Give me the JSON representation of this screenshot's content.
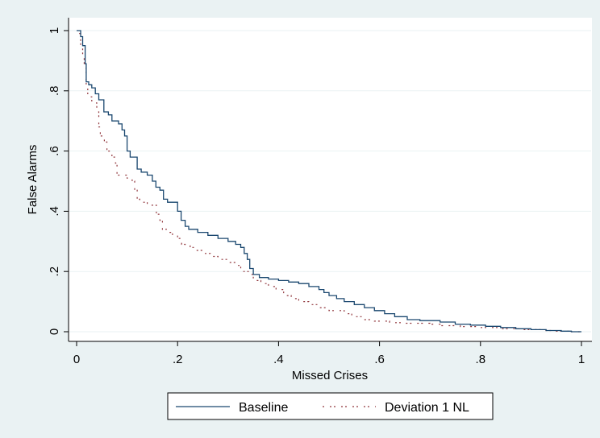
{
  "colors": {
    "background": "#eaf2f3",
    "plot_background": "#ffffff",
    "grid": "#eaf2f3",
    "baseline": "#1a476f",
    "deviation": "#90353b"
  },
  "chart_data": {
    "type": "line",
    "title": "",
    "xlabel": "Missed Crises",
    "ylabel": "False Alarms",
    "xlim": [
      0,
      1
    ],
    "ylim": [
      0,
      1
    ],
    "x_ticks": [
      0,
      0.2,
      0.4,
      0.6,
      0.8,
      1
    ],
    "x_tick_labels": [
      "0",
      ".2",
      ".4",
      ".6",
      ".8",
      "1"
    ],
    "y_ticks": [
      0,
      0.2,
      0.4,
      0.6,
      0.8,
      1
    ],
    "y_tick_labels": [
      "0",
      ".2",
      ".4",
      ".6",
      ".8",
      "1"
    ],
    "grid": true,
    "legend_position": "bottom",
    "series": [
      {
        "name": "Baseline",
        "style": "solid step",
        "points": [
          [
            0,
            1.0
          ],
          [
            0.008,
            1.0
          ],
          [
            0.008,
            0.98
          ],
          [
            0.012,
            0.98
          ],
          [
            0.012,
            0.95
          ],
          [
            0.017,
            0.95
          ],
          [
            0.017,
            0.89
          ],
          [
            0.019,
            0.89
          ],
          [
            0.019,
            0.83
          ],
          [
            0.024,
            0.83
          ],
          [
            0.024,
            0.82
          ],
          [
            0.03,
            0.82
          ],
          [
            0.03,
            0.81
          ],
          [
            0.037,
            0.81
          ],
          [
            0.037,
            0.79
          ],
          [
            0.044,
            0.79
          ],
          [
            0.044,
            0.77
          ],
          [
            0.054,
            0.77
          ],
          [
            0.054,
            0.73
          ],
          [
            0.063,
            0.73
          ],
          [
            0.063,
            0.72
          ],
          [
            0.07,
            0.72
          ],
          [
            0.07,
            0.7
          ],
          [
            0.083,
            0.7
          ],
          [
            0.083,
            0.69
          ],
          [
            0.09,
            0.69
          ],
          [
            0.09,
            0.67
          ],
          [
            0.095,
            0.67
          ],
          [
            0.095,
            0.65
          ],
          [
            0.1,
            0.65
          ],
          [
            0.1,
            0.6
          ],
          [
            0.106,
            0.6
          ],
          [
            0.106,
            0.58
          ],
          [
            0.12,
            0.58
          ],
          [
            0.12,
            0.54
          ],
          [
            0.128,
            0.54
          ],
          [
            0.128,
            0.53
          ],
          [
            0.14,
            0.53
          ],
          [
            0.14,
            0.52
          ],
          [
            0.15,
            0.52
          ],
          [
            0.15,
            0.5
          ],
          [
            0.157,
            0.5
          ],
          [
            0.157,
            0.48
          ],
          [
            0.165,
            0.48
          ],
          [
            0.165,
            0.47
          ],
          [
            0.172,
            0.47
          ],
          [
            0.172,
            0.44
          ],
          [
            0.18,
            0.44
          ],
          [
            0.18,
            0.43
          ],
          [
            0.2,
            0.43
          ],
          [
            0.2,
            0.4
          ],
          [
            0.207,
            0.4
          ],
          [
            0.207,
            0.37
          ],
          [
            0.215,
            0.37
          ],
          [
            0.215,
            0.35
          ],
          [
            0.222,
            0.35
          ],
          [
            0.222,
            0.34
          ],
          [
            0.24,
            0.34
          ],
          [
            0.24,
            0.33
          ],
          [
            0.26,
            0.33
          ],
          [
            0.26,
            0.32
          ],
          [
            0.28,
            0.32
          ],
          [
            0.28,
            0.31
          ],
          [
            0.3,
            0.31
          ],
          [
            0.3,
            0.3
          ],
          [
            0.315,
            0.3
          ],
          [
            0.315,
            0.29
          ],
          [
            0.325,
            0.29
          ],
          [
            0.325,
            0.28
          ],
          [
            0.332,
            0.28
          ],
          [
            0.332,
            0.26
          ],
          [
            0.338,
            0.26
          ],
          [
            0.338,
            0.24
          ],
          [
            0.343,
            0.24
          ],
          [
            0.343,
            0.21
          ],
          [
            0.35,
            0.21
          ],
          [
            0.35,
            0.19
          ],
          [
            0.362,
            0.19
          ],
          [
            0.362,
            0.18
          ],
          [
            0.38,
            0.18
          ],
          [
            0.38,
            0.175
          ],
          [
            0.4,
            0.175
          ],
          [
            0.4,
            0.17
          ],
          [
            0.42,
            0.17
          ],
          [
            0.42,
            0.165
          ],
          [
            0.44,
            0.165
          ],
          [
            0.44,
            0.16
          ],
          [
            0.46,
            0.16
          ],
          [
            0.46,
            0.15
          ],
          [
            0.48,
            0.15
          ],
          [
            0.48,
            0.14
          ],
          [
            0.49,
            0.14
          ],
          [
            0.49,
            0.13
          ],
          [
            0.5,
            0.13
          ],
          [
            0.5,
            0.12
          ],
          [
            0.515,
            0.12
          ],
          [
            0.515,
            0.11
          ],
          [
            0.53,
            0.11
          ],
          [
            0.53,
            0.1
          ],
          [
            0.55,
            0.1
          ],
          [
            0.55,
            0.09
          ],
          [
            0.57,
            0.09
          ],
          [
            0.57,
            0.08
          ],
          [
            0.59,
            0.08
          ],
          [
            0.59,
            0.07
          ],
          [
            0.61,
            0.07
          ],
          [
            0.61,
            0.06
          ],
          [
            0.63,
            0.06
          ],
          [
            0.63,
            0.05
          ],
          [
            0.655,
            0.05
          ],
          [
            0.655,
            0.04
          ],
          [
            0.68,
            0.04
          ],
          [
            0.68,
            0.037
          ],
          [
            0.72,
            0.037
          ],
          [
            0.72,
            0.032
          ],
          [
            0.75,
            0.032
          ],
          [
            0.75,
            0.025
          ],
          [
            0.78,
            0.025
          ],
          [
            0.78,
            0.022
          ],
          [
            0.81,
            0.022
          ],
          [
            0.81,
            0.018
          ],
          [
            0.84,
            0.018
          ],
          [
            0.84,
            0.014
          ],
          [
            0.87,
            0.014
          ],
          [
            0.87,
            0.01
          ],
          [
            0.9,
            0.01
          ],
          [
            0.9,
            0.007
          ],
          [
            0.93,
            0.007
          ],
          [
            0.93,
            0.004
          ],
          [
            0.96,
            0.004
          ],
          [
            0.96,
            0.002
          ],
          [
            0.98,
            0.002
          ],
          [
            0.98,
            0.0
          ],
          [
            1.0,
            0.0
          ]
        ]
      },
      {
        "name": "Deviation 1 NL",
        "style": "dashed step",
        "points": [
          [
            0.005,
            0.99
          ],
          [
            0.008,
            0.99
          ],
          [
            0.008,
            0.95
          ],
          [
            0.012,
            0.95
          ],
          [
            0.012,
            0.92
          ],
          [
            0.015,
            0.92
          ],
          [
            0.015,
            0.88
          ],
          [
            0.019,
            0.88
          ],
          [
            0.019,
            0.82
          ],
          [
            0.022,
            0.82
          ],
          [
            0.022,
            0.78
          ],
          [
            0.03,
            0.78
          ],
          [
            0.03,
            0.76
          ],
          [
            0.04,
            0.76
          ],
          [
            0.04,
            0.73
          ],
          [
            0.044,
            0.73
          ],
          [
            0.044,
            0.68
          ],
          [
            0.047,
            0.68
          ],
          [
            0.047,
            0.65
          ],
          [
            0.055,
            0.65
          ],
          [
            0.055,
            0.63
          ],
          [
            0.06,
            0.63
          ],
          [
            0.06,
            0.6
          ],
          [
            0.07,
            0.6
          ],
          [
            0.07,
            0.58
          ],
          [
            0.077,
            0.58
          ],
          [
            0.077,
            0.56
          ],
          [
            0.08,
            0.56
          ],
          [
            0.08,
            0.52
          ],
          [
            0.1,
            0.52
          ],
          [
            0.1,
            0.51
          ],
          [
            0.11,
            0.51
          ],
          [
            0.11,
            0.5
          ],
          [
            0.115,
            0.5
          ],
          [
            0.115,
            0.47
          ],
          [
            0.12,
            0.47
          ],
          [
            0.12,
            0.44
          ],
          [
            0.125,
            0.44
          ],
          [
            0.125,
            0.43
          ],
          [
            0.14,
            0.43
          ],
          [
            0.14,
            0.42
          ],
          [
            0.158,
            0.42
          ],
          [
            0.158,
            0.39
          ],
          [
            0.165,
            0.39
          ],
          [
            0.165,
            0.37
          ],
          [
            0.17,
            0.37
          ],
          [
            0.17,
            0.34
          ],
          [
            0.18,
            0.34
          ],
          [
            0.18,
            0.33
          ],
          [
            0.19,
            0.33
          ],
          [
            0.19,
            0.32
          ],
          [
            0.2,
            0.32
          ],
          [
            0.2,
            0.31
          ],
          [
            0.208,
            0.31
          ],
          [
            0.208,
            0.29
          ],
          [
            0.215,
            0.29
          ],
          [
            0.215,
            0.285
          ],
          [
            0.225,
            0.285
          ],
          [
            0.225,
            0.28
          ],
          [
            0.235,
            0.28
          ],
          [
            0.235,
            0.27
          ],
          [
            0.25,
            0.27
          ],
          [
            0.25,
            0.26
          ],
          [
            0.265,
            0.26
          ],
          [
            0.265,
            0.25
          ],
          [
            0.28,
            0.25
          ],
          [
            0.28,
            0.24
          ],
          [
            0.3,
            0.24
          ],
          [
            0.3,
            0.23
          ],
          [
            0.315,
            0.23
          ],
          [
            0.315,
            0.22
          ],
          [
            0.325,
            0.22
          ],
          [
            0.325,
            0.2
          ],
          [
            0.34,
            0.2
          ],
          [
            0.34,
            0.19
          ],
          [
            0.35,
            0.19
          ],
          [
            0.35,
            0.17
          ],
          [
            0.365,
            0.17
          ],
          [
            0.365,
            0.16
          ],
          [
            0.38,
            0.16
          ],
          [
            0.38,
            0.15
          ],
          [
            0.395,
            0.15
          ],
          [
            0.395,
            0.14
          ],
          [
            0.41,
            0.14
          ],
          [
            0.41,
            0.12
          ],
          [
            0.425,
            0.12
          ],
          [
            0.425,
            0.11
          ],
          [
            0.44,
            0.11
          ],
          [
            0.44,
            0.1
          ],
          [
            0.46,
            0.1
          ],
          [
            0.46,
            0.09
          ],
          [
            0.48,
            0.09
          ],
          [
            0.48,
            0.08
          ],
          [
            0.5,
            0.08
          ],
          [
            0.5,
            0.07
          ],
          [
            0.53,
            0.07
          ],
          [
            0.53,
            0.06
          ],
          [
            0.545,
            0.06
          ],
          [
            0.545,
            0.05
          ],
          [
            0.565,
            0.05
          ],
          [
            0.565,
            0.04
          ],
          [
            0.59,
            0.04
          ],
          [
            0.59,
            0.035
          ],
          [
            0.62,
            0.035
          ],
          [
            0.62,
            0.03
          ],
          [
            0.65,
            0.03
          ],
          [
            0.65,
            0.028
          ],
          [
            0.7,
            0.028
          ],
          [
            0.7,
            0.025
          ],
          [
            0.72,
            0.025
          ],
          [
            0.72,
            0.02
          ],
          [
            0.76,
            0.02
          ],
          [
            0.76,
            0.017
          ],
          [
            0.8,
            0.017
          ],
          [
            0.8,
            0.014
          ],
          [
            0.84,
            0.014
          ],
          [
            0.84,
            0.01
          ],
          [
            0.88,
            0.01
          ],
          [
            0.88,
            0.007
          ],
          [
            0.92,
            0.007
          ],
          [
            0.92,
            0.004
          ],
          [
            0.95,
            0.004
          ],
          [
            0.95,
            0.002
          ],
          [
            0.98,
            0.002
          ],
          [
            0.98,
            0.0
          ],
          [
            1.0,
            0.0
          ]
        ]
      }
    ]
  }
}
